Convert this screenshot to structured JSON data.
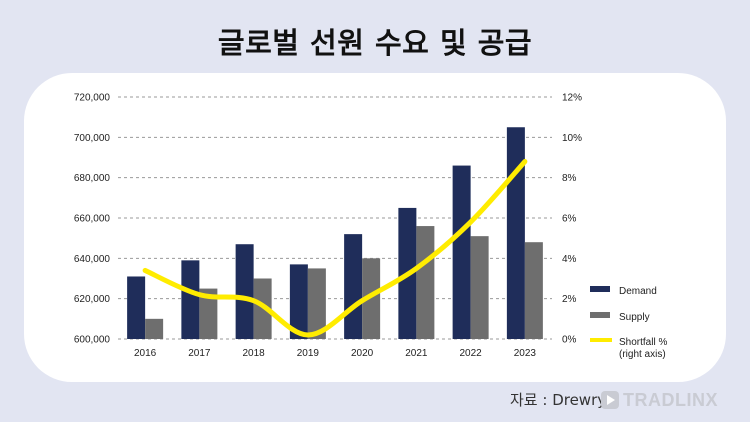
{
  "page": {
    "title": "글로벌 선원 수요 및 공급",
    "source": "자료 : Drewry",
    "brand": "TRADLINX"
  },
  "colors": {
    "demand": "#1f2d5a",
    "supply": "#6e6e6e",
    "shortfall": "#ffec00",
    "grid": "#9a9a9a"
  },
  "chart_data": {
    "type": "bar",
    "categories": [
      "2016",
      "2017",
      "2018",
      "2019",
      "2020",
      "2021",
      "2022",
      "2023"
    ],
    "series": [
      {
        "name": "Demand",
        "type": "bar",
        "axis": "left",
        "values": [
          631000,
          639000,
          647000,
          637000,
          652000,
          665000,
          686000,
          705000
        ]
      },
      {
        "name": "Supply",
        "type": "bar",
        "axis": "left",
        "values": [
          610000,
          625000,
          630000,
          635000,
          640000,
          656000,
          651000,
          648000
        ]
      },
      {
        "name": "Shortfall %\n(right axis)",
        "type": "line",
        "axis": "right",
        "values": [
          3.4,
          2.2,
          1.9,
          0.2,
          1.9,
          3.5,
          5.8,
          8.8
        ]
      }
    ],
    "ylim": [
      600000,
      720000
    ],
    "yticks": [
      "600,000",
      "620,000",
      "640,000",
      "660,000",
      "680,000",
      "700,000",
      "720,000"
    ],
    "y2lim": [
      0,
      12
    ],
    "y2ticks": [
      "0%",
      "2%",
      "4%",
      "6%",
      "8%",
      "10%",
      "12%"
    ],
    "legend": [
      {
        "label": "Demand"
      },
      {
        "label": "Supply"
      },
      {
        "label": "Shortfall %",
        "label2": "(right axis)"
      }
    ],
    "legend_position": "right",
    "grid": true
  }
}
